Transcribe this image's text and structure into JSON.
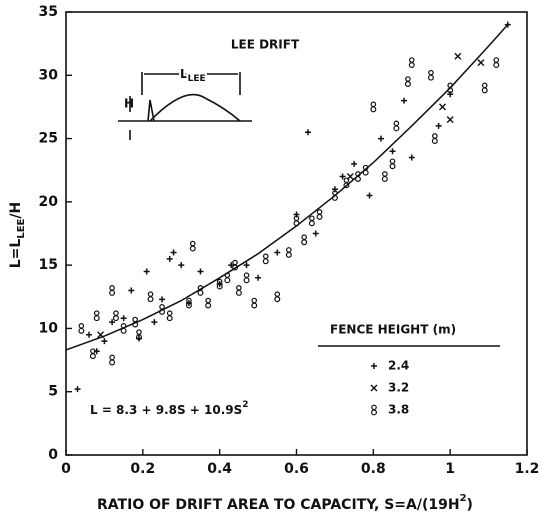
{
  "chart_data": {
    "type": "scatter",
    "title": "LEE DRIFT",
    "inset_labels": {
      "height": "H",
      "length_main": "L",
      "length_sub": "LEE"
    },
    "x_label": {
      "main": "RATIO OF DRIFT AREA TO CAPACITY, S=A/(19H",
      "sup": "2",
      "end": ")"
    },
    "y_label": {
      "main": "L=L",
      "sub": "LEE",
      "end": "/H"
    },
    "equation": {
      "main": "L = 8.3 + 9.8S + 10.9S",
      "sup": "2"
    },
    "legend_title": "FENCE HEIGHT  (m)",
    "legend_position": "lower right",
    "xlim": [
      0,
      1.2
    ],
    "xticks": [
      0,
      0.2,
      0.4,
      0.6,
      0.8,
      1.0,
      1.2
    ],
    "ylim": [
      0,
      35
    ],
    "yticks": [
      0,
      5,
      10,
      15,
      20,
      25,
      30,
      35
    ],
    "color": "#111111",
    "fit": {
      "x": [
        0,
        0.1,
        0.2,
        0.3,
        0.4,
        0.5,
        0.6,
        0.7,
        0.8,
        0.9,
        1.0,
        1.1,
        1.15
      ],
      "values": [
        8.3,
        9.4,
        10.7,
        12.2,
        14.0,
        15.9,
        18.1,
        20.5,
        23.1,
        26.0,
        29.0,
        32.3,
        34.0
      ]
    },
    "series": [
      {
        "name": "2.4",
        "marker": "plus",
        "x": [
          0.03,
          0.06,
          0.08,
          0.1,
          0.12,
          0.15,
          0.17,
          0.19,
          0.21,
          0.23,
          0.25,
          0.27,
          0.3,
          0.32,
          0.35,
          0.4,
          0.43,
          0.47,
          0.55,
          0.6,
          0.63,
          0.65,
          0.7,
          0.72,
          0.75,
          0.79,
          0.82,
          0.85,
          0.88,
          0.9,
          1.0,
          1.15,
          0.97,
          0.5,
          0.28
        ],
        "values": [
          5.2,
          9.5,
          8.2,
          9.0,
          10.5,
          10.8,
          13.0,
          9.2,
          14.5,
          10.5,
          12.3,
          15.5,
          15.0,
          12.0,
          14.5,
          13.5,
          15.0,
          15.0,
          16.0,
          19.0,
          25.5,
          17.5,
          21.0,
          22.0,
          23.0,
          20.5,
          25.0,
          24.0,
          28.0,
          23.5,
          28.5,
          34.0,
          26.0,
          14.0,
          16.0
        ]
      },
      {
        "name": "3.2",
        "marker": "x",
        "x": [
          1.02,
          1.08,
          0.98,
          0.74,
          1.0,
          0.09
        ],
        "values": [
          31.5,
          31.0,
          27.5,
          22.0,
          26.5,
          9.5
        ]
      },
      {
        "name": "3.8",
        "marker": "eight",
        "x": [
          0.04,
          0.07,
          0.08,
          0.12,
          0.13,
          0.12,
          0.15,
          0.18,
          0.19,
          0.22,
          0.25,
          0.27,
          0.32,
          0.35,
          0.37,
          0.33,
          0.4,
          0.42,
          0.44,
          0.45,
          0.47,
          0.49,
          0.52,
          0.55,
          0.58,
          0.6,
          0.62,
          0.64,
          0.66,
          0.7,
          0.73,
          0.76,
          0.78,
          0.8,
          0.83,
          0.86,
          0.89,
          0.9,
          0.95,
          0.96,
          1.0,
          1.09,
          1.12,
          0.85
        ],
        "values": [
          10.0,
          8.0,
          11.0,
          13.0,
          11.0,
          7.5,
          10.0,
          10.5,
          9.5,
          12.5,
          11.5,
          11.0,
          12.0,
          13.0,
          12.0,
          16.5,
          13.5,
          14.0,
          15.0,
          13.0,
          14.0,
          12.0,
          15.5,
          12.5,
          16.0,
          18.5,
          17.0,
          18.5,
          19.0,
          20.5,
          21.5,
          22.0,
          22.5,
          27.5,
          22.0,
          26.0,
          29.5,
          31.0,
          30.0,
          25.0,
          29.0,
          29.0,
          31.0,
          23.0
        ]
      }
    ]
  }
}
